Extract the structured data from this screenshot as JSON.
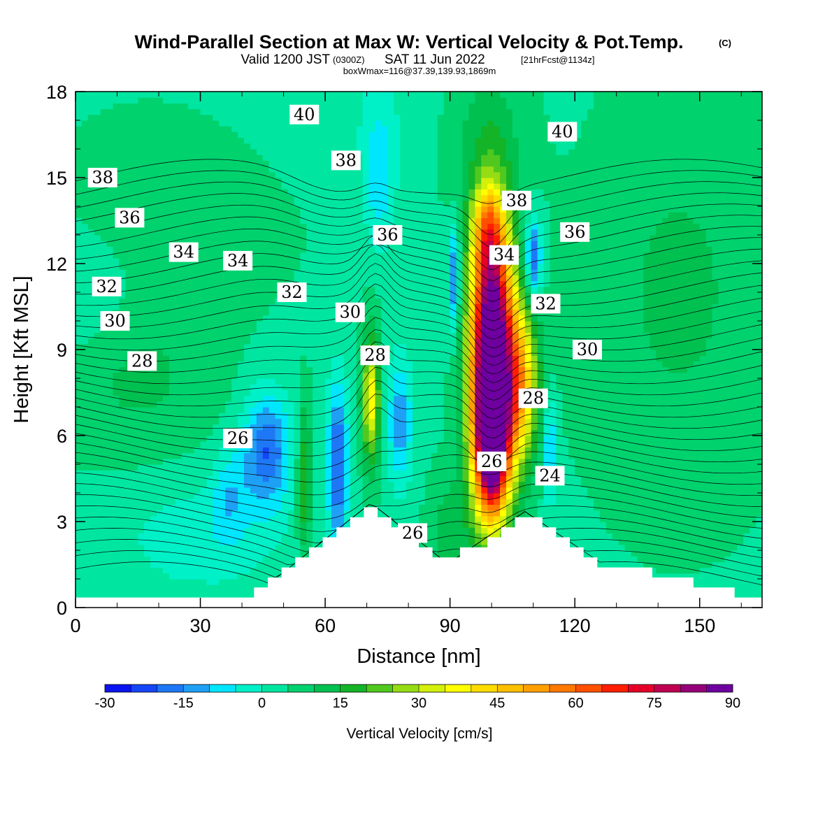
{
  "title": {
    "main": "Wind-Parallel Section at Max W: Vertical Velocity & Pot.Temp.",
    "copyright": "(C)",
    "valid_prefix": "Valid 1200 JST",
    "valid_utc": "(0300Z)",
    "valid_date": "SAT 11 Jun 2022",
    "forecast": "[21hrFcst@1134z]",
    "box_info": "boxWmax=116@37.39,139.93,1869m"
  },
  "chart_data": {
    "type": "heatmap",
    "xlabel": "Distance [nm]",
    "ylabel": "Height [Kft MSL]",
    "xlim": [
      0,
      165
    ],
    "ylim": [
      0,
      18
    ],
    "x_ticks": [
      "0",
      "30",
      "60",
      "90",
      "120",
      "150"
    ],
    "x_tick_values": [
      0,
      30,
      60,
      90,
      120,
      150
    ],
    "y_ticks": [
      "0",
      "3",
      "6",
      "9",
      "12",
      "15",
      "18"
    ],
    "y_tick_values": [
      0,
      3,
      6,
      9,
      12,
      15,
      18
    ],
    "field": "Vertical Velocity",
    "colorbar": {
      "label": "Vertical Velocity [cm/s]",
      "min": -30,
      "max": 100,
      "step": 5,
      "tick_labels": [
        "-30",
        "-15",
        "0",
        "15",
        "30",
        "45",
        "60",
        "75",
        "90"
      ],
      "tick_values": [
        -30,
        -15,
        0,
        15,
        30,
        45,
        60,
        75,
        90
      ],
      "colors": [
        "#0a14f0",
        "#1446f5",
        "#1e78f5",
        "#1ea0f5",
        "#00e6ff",
        "#00f0c8",
        "#00e6a0",
        "#00d26e",
        "#00c050",
        "#14b428",
        "#50c81e",
        "#96dc14",
        "#d2f00a",
        "#ffff00",
        "#ffdc00",
        "#ffbe00",
        "#ffa000",
        "#ff7800",
        "#ff5000",
        "#ff1e00",
        "#e60028",
        "#c00050",
        "#960078",
        "#6e00a0"
      ]
    },
    "terrain_peaks": [
      {
        "x": 71,
        "height": 3.6
      },
      {
        "x": 108,
        "height": 3.3
      }
    ],
    "updraft_cores": [
      {
        "x": 100,
        "height": 9,
        "w_max": 100
      },
      {
        "x": 71,
        "height": 7.5,
        "w": 35
      },
      {
        "x": 55,
        "height": 4.5,
        "w": 20
      },
      {
        "x": 108,
        "height": 7.5,
        "w": 35
      }
    ],
    "downdraft_cores": [
      {
        "x": 46,
        "height": 5.5,
        "w": -20
      },
      {
        "x": 63,
        "height": 5,
        "w": -22
      },
      {
        "x": 91,
        "height": 11.5,
        "w": -20
      },
      {
        "x": 110,
        "height": 12.2,
        "w": -22
      }
    ],
    "pot_temp_contour_labels": [
      {
        "text": "40",
        "x": 55,
        "y": 17.2
      },
      {
        "text": "40",
        "x": 117,
        "y": 16.6
      },
      {
        "text": "38",
        "x": 6.5,
        "y": 15.0
      },
      {
        "text": "38",
        "x": 65,
        "y": 15.6
      },
      {
        "text": "38",
        "x": 106,
        "y": 14.2
      },
      {
        "text": "36",
        "x": 13,
        "y": 13.6
      },
      {
        "text": "36",
        "x": 75,
        "y": 13.0
      },
      {
        "text": "36",
        "x": 120,
        "y": 13.1
      },
      {
        "text": "34",
        "x": 26,
        "y": 12.4
      },
      {
        "text": "34",
        "x": 39,
        "y": 12.1
      },
      {
        "text": "34",
        "x": 103,
        "y": 12.3
      },
      {
        "text": "32",
        "x": 7.5,
        "y": 11.2
      },
      {
        "text": "32",
        "x": 52,
        "y": 11.0
      },
      {
        "text": "32",
        "x": 113,
        "y": 10.6
      },
      {
        "text": "30",
        "x": 9.5,
        "y": 10.0
      },
      {
        "text": "30",
        "x": 66,
        "y": 10.3
      },
      {
        "text": "30",
        "x": 123,
        "y": 9.0
      },
      {
        "text": "28",
        "x": 16,
        "y": 8.6
      },
      {
        "text": "28",
        "x": 72,
        "y": 8.8
      },
      {
        "text": "28",
        "x": 110,
        "y": 7.3
      },
      {
        "text": "26",
        "x": 39,
        "y": 5.9
      },
      {
        "text": "26",
        "x": 100,
        "y": 5.1
      },
      {
        "text": "26",
        "x": 81,
        "y": 2.6
      },
      {
        "text": "24",
        "x": 114,
        "y": 4.6
      }
    ]
  }
}
